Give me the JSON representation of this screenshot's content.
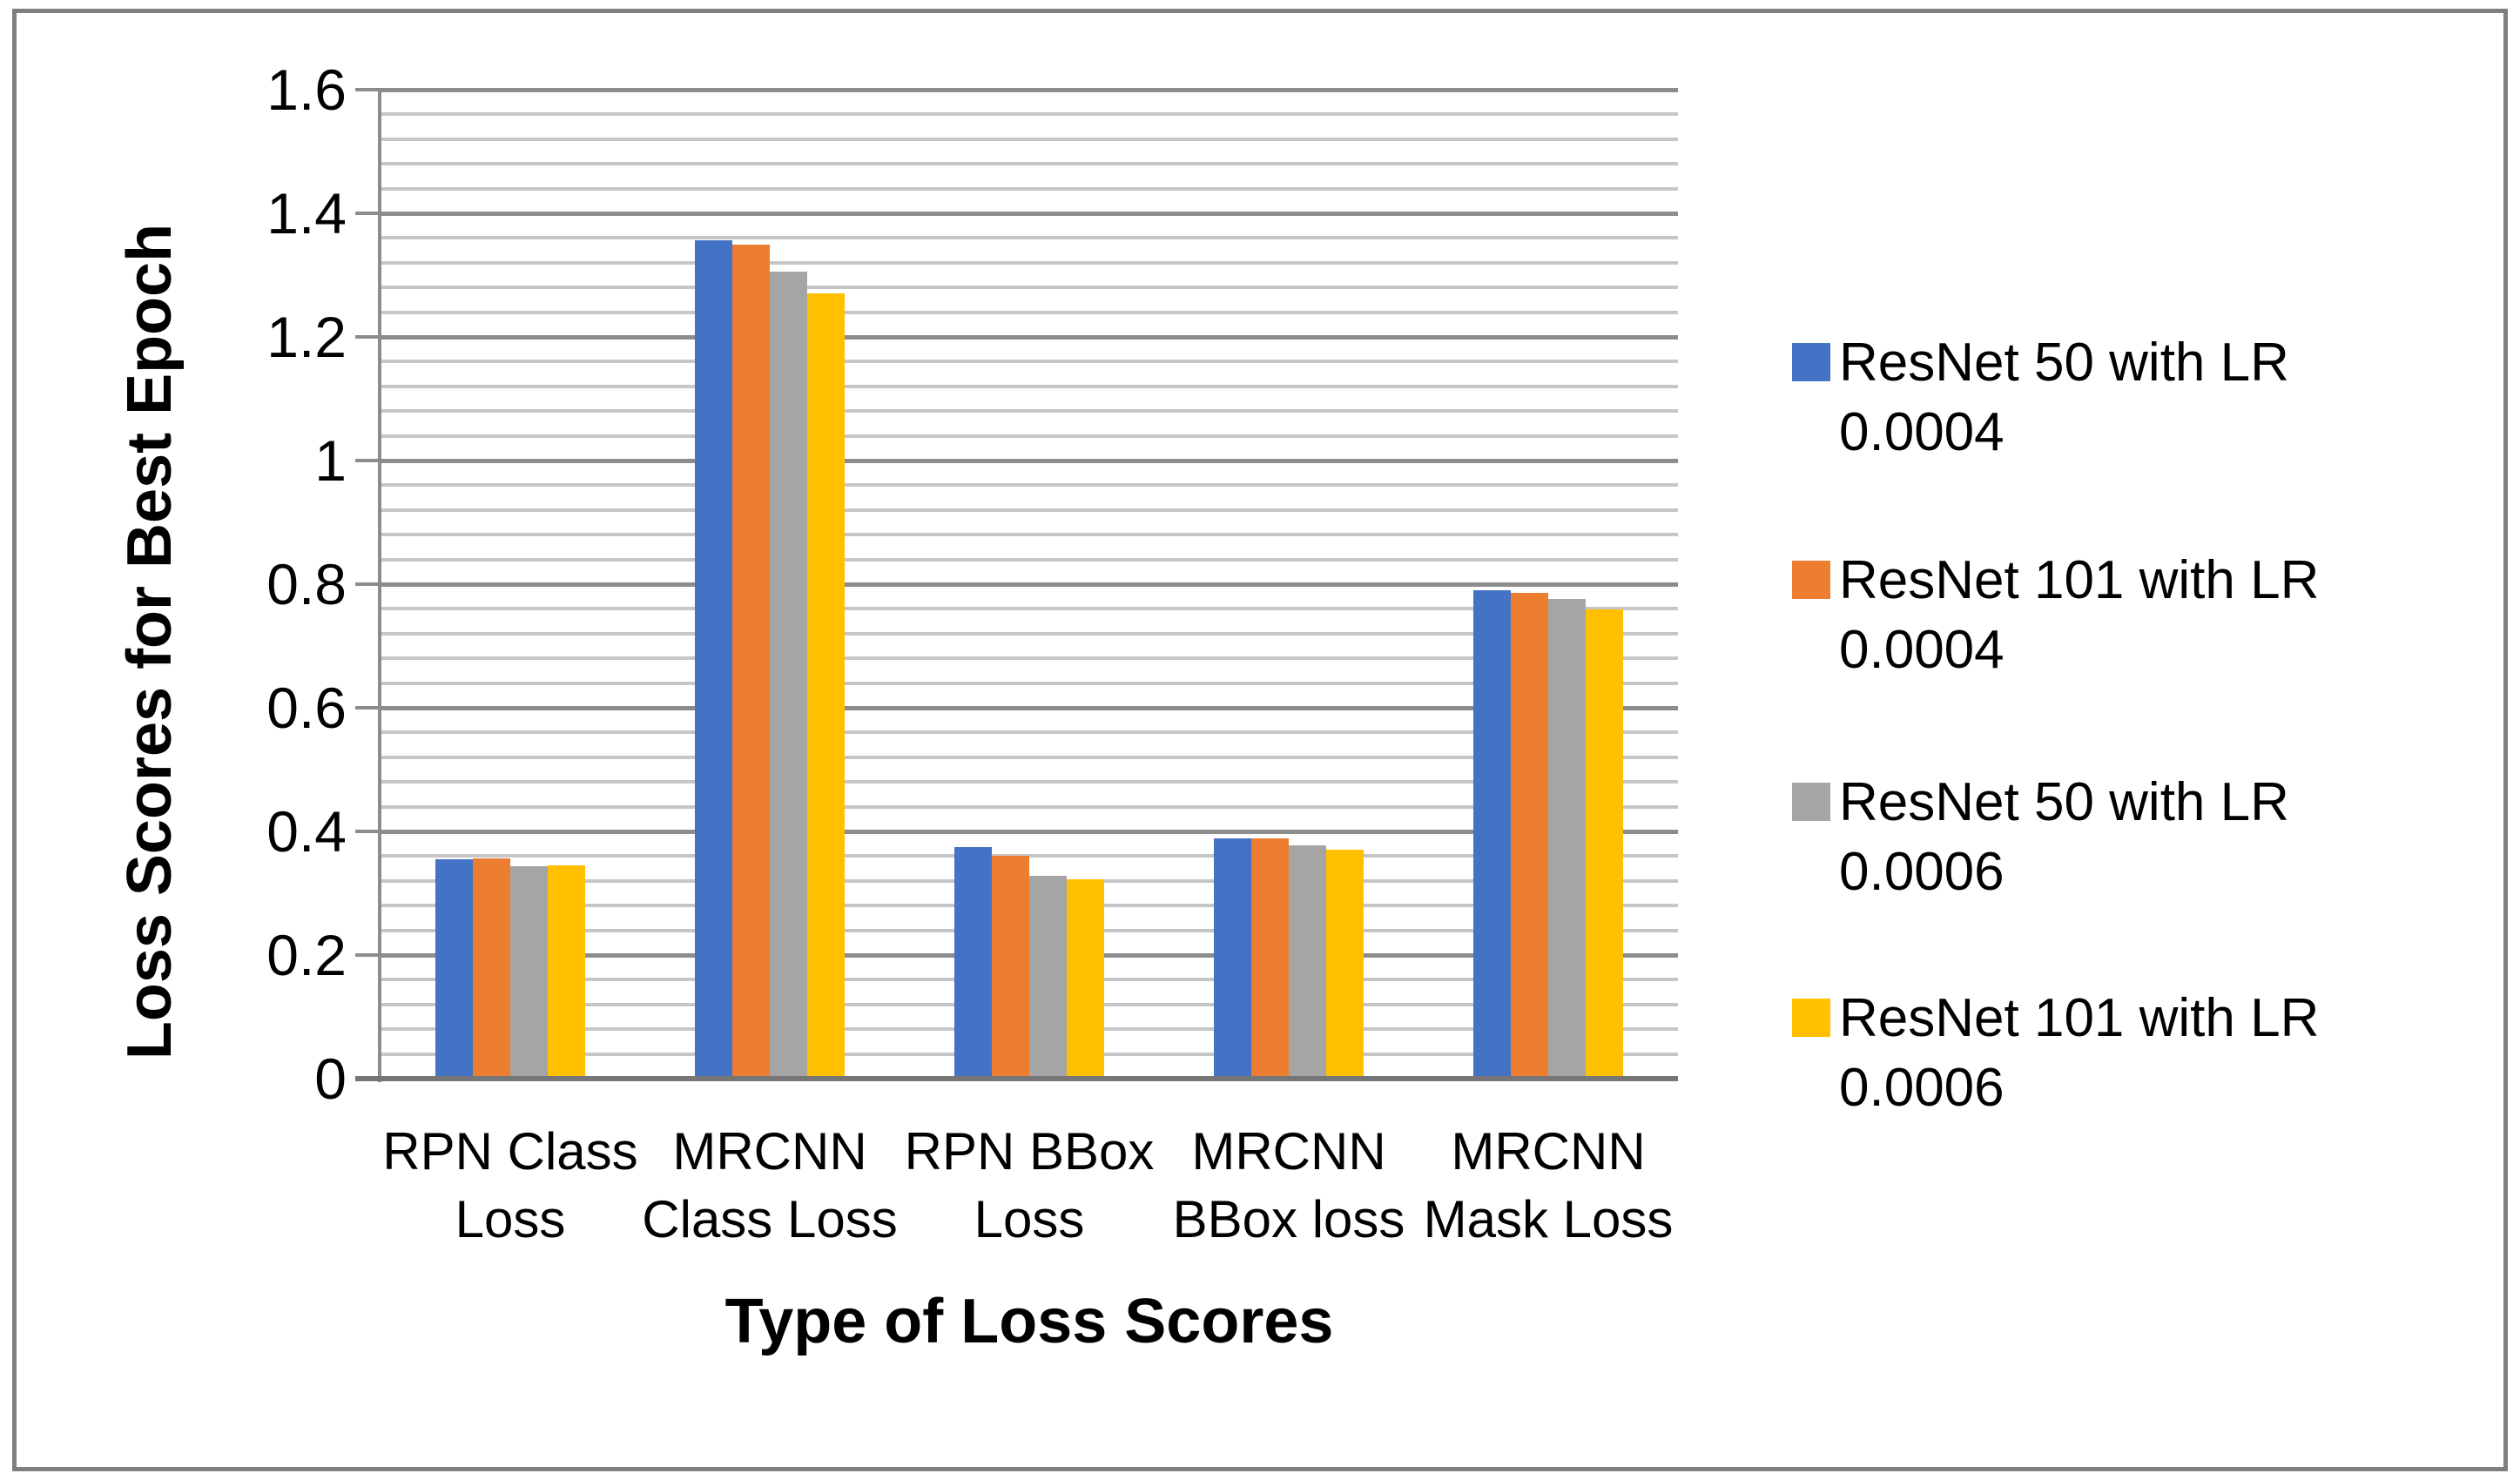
{
  "chart_data": {
    "type": "bar",
    "title": "",
    "xlabel": "Type of Loss Scores",
    "ylabel": "Loss Scores for Best Epoch",
    "ylim": [
      0,
      1.6
    ],
    "ytick_step": 0.2,
    "yminor_step": 0.04,
    "ytick_labels": [
      "0",
      "0.2",
      "0.4",
      "0.6",
      "0.8",
      "1",
      "1.2",
      "1.4",
      "1.6"
    ],
    "grid": "horizontal major and minor, on",
    "legend_position": "right",
    "categories": [
      {
        "label": "RPN Class Loss",
        "lines": [
          "RPN Class",
          "Loss"
        ]
      },
      {
        "label": "MRCNN Class Loss",
        "lines": [
          "MRCNN",
          "Class Loss"
        ]
      },
      {
        "label": "RPN BBox Loss",
        "lines": [
          "RPN BBox",
          "Loss"
        ]
      },
      {
        "label": "MRCNN BBox loss",
        "lines": [
          "MRCNN",
          "BBox loss"
        ]
      },
      {
        "label": "MRCNN Mask Loss",
        "lines": [
          "MRCNN",
          "Mask Loss"
        ]
      }
    ],
    "series": [
      {
        "name": "ResNet 50 with LR 0.0004",
        "legend_lines": [
          "ResNet 50 with LR",
          "0.0004"
        ],
        "color": "#4472C4",
        "values": [
          0.355,
          1.356,
          0.375,
          0.389,
          0.79
        ]
      },
      {
        "name": "ResNet 101 with LR 0.0004",
        "legend_lines": [
          "ResNet 101 with LR",
          "0.0004"
        ],
        "color": "#ED7D31",
        "values": [
          0.357,
          1.35,
          0.361,
          0.389,
          0.786
        ]
      },
      {
        "name": "ResNet 50 with LR 0.0006",
        "legend_lines": [
          "ResNet 50 with LR",
          "0.0006"
        ],
        "color": "#A5A5A5",
        "values": [
          0.343,
          1.306,
          0.328,
          0.377,
          0.776
        ]
      },
      {
        "name": "ResNet 101 with LR 0.0006",
        "legend_lines": [
          "ResNet 101 with LR",
          "0.0006"
        ],
        "color": "#FFC000",
        "values": [
          0.345,
          1.271,
          0.323,
          0.371,
          0.759
        ]
      }
    ]
  },
  "colors": {
    "series_blue": "#4472C4",
    "series_orange": "#ED7D31",
    "series_gray": "#A5A5A5",
    "series_yellow": "#FFC000",
    "gridline_minor": "#C6C6C6",
    "gridline_major": "#8C8C8C",
    "axis_line": "#8C8C8C",
    "baseline": "#767676",
    "frame_border": "#7F7F7F",
    "background": "#FFFFFF",
    "text": "#000000"
  }
}
